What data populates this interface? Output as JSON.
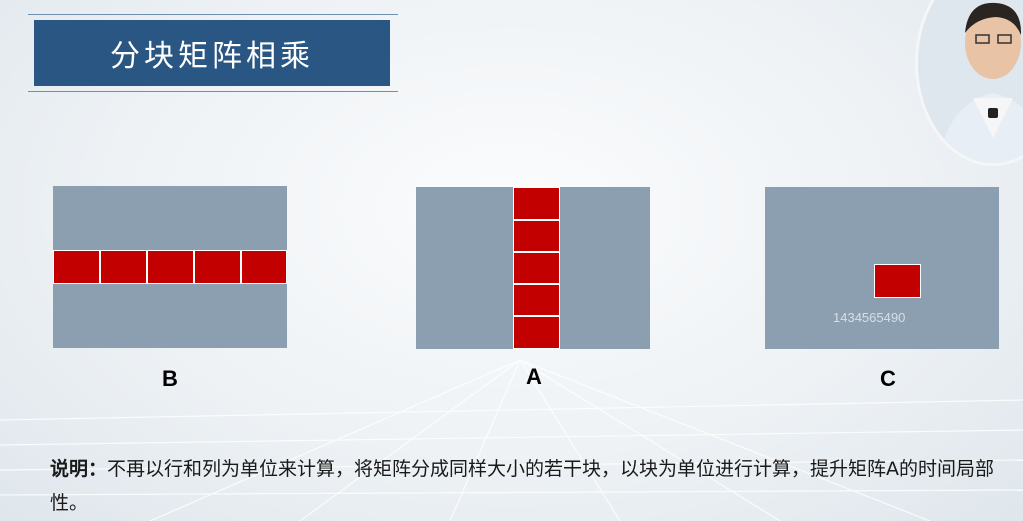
{
  "slide": {
    "title": "分块矩阵相乘",
    "watermark": "1434565490"
  },
  "matrices": {
    "b_label": "B",
    "a_label": "A",
    "c_label": "C",
    "block_color": "#c20000",
    "matrix_color": "#8c9fb1"
  },
  "description": {
    "lead": "说明：",
    "text": "不再以行和列为单位来计算，将矩阵分成同样大小的若干块，以块为单位进行计算，提升矩阵A的时间局部性。"
  },
  "presenter": {
    "icon": "presenter-video-icon"
  }
}
